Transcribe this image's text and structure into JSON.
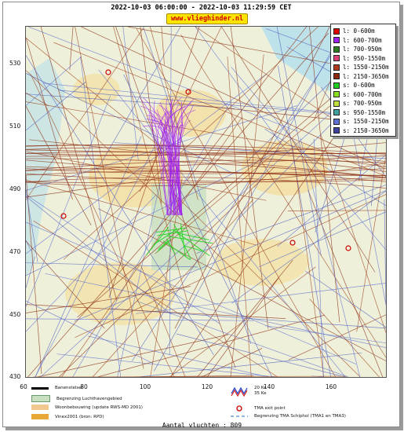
{
  "header": {
    "title": "2022-10-03 06:00:00 - 2022-10-03 11:29:59 CET",
    "brand": "www.vlieghinder.nl"
  },
  "axes": {
    "y_ticks": [
      "530",
      "510",
      "490",
      "470",
      "450",
      "430"
    ],
    "x_ticks": [
      "60",
      "80",
      "100",
      "120",
      "140",
      "160"
    ]
  },
  "legend": {
    "items": [
      {
        "label": "l: 0-600m",
        "color": "#e00000"
      },
      {
        "label": "l: 600-700m",
        "color": "#a020f0"
      },
      {
        "label": "l: 700-950m",
        "color": "#2e7d1e"
      },
      {
        "label": "l: 950-1550m",
        "color": "#e0407a"
      },
      {
        "label": "l: 1550-2150m",
        "color": "#b03a1a"
      },
      {
        "label": "l: 2150-3650m",
        "color": "#8b2a10"
      },
      {
        "label": "s: 0-600m",
        "color": "#20d020"
      },
      {
        "label": "s: 600-700m",
        "color": "#8ae020"
      },
      {
        "label": "s: 700-950m",
        "color": "#c0e040"
      },
      {
        "label": "s: 950-1550m",
        "color": "#40a0a0"
      },
      {
        "label": "s: 1550-2150m",
        "color": "#6070d0"
      },
      {
        "label": "s: 2150-3650m",
        "color": "#4040a0"
      }
    ]
  },
  "map_legend": {
    "runway": "Banenstelsel",
    "airport_boundary": "Begrenzing Luchthavengebied",
    "housing": "Woonbebouwing (update RWS-MD 2001)",
    "vinex": "Vinex2001 (bron: RPD)",
    "contour_20": "20 Ke",
    "contour_35": "35 Ke",
    "tma_exit": "TMA exit point",
    "tma_boundary": "Begrenzing TMA Schiphol (TMA1 en TMA3)"
  },
  "footer": {
    "flight_count": "Aantal vluchten : 809"
  },
  "colors": {
    "land": "#eef0da",
    "urban": "#f4dfa0",
    "water": "#a8d8ea",
    "airport_area": "#c8e0c0"
  }
}
